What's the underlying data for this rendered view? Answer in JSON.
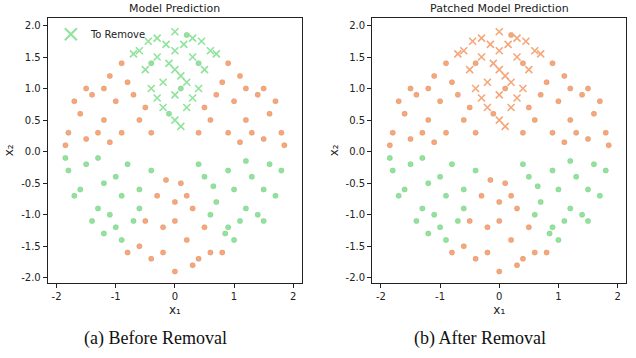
{
  "chart_data": [
    {
      "type": "scatter",
      "title": "Model Prediction",
      "x_label": "x₁",
      "y_label": "x₂",
      "caption": "(a) Before Removal",
      "xlim": [
        -2.15,
        2.15
      ],
      "ylim": [
        -2.08,
        2.12
      ],
      "xticks": [
        -2,
        -1,
        0,
        1,
        2
      ],
      "yticks": [
        {
          "value": -2,
          "label": "-2.0"
        },
        {
          "value": -1.5,
          "label": "-1.5"
        },
        {
          "value": -1,
          "label": "-1.0"
        },
        {
          "value": -0.5,
          "label": "-0.5"
        },
        {
          "value": 0,
          "label": "0.0"
        },
        {
          "value": 0.5,
          "label": "0.5"
        },
        {
          "value": 1,
          "label": "1.0"
        },
        {
          "value": 1.5,
          "label": "1.5"
        },
        {
          "value": 2,
          "label": "2.0"
        }
      ],
      "grid": false,
      "legend": "upper left",
      "series": [
        {
          "color": "#f6a679",
          "marker": "circle",
          "x": [
            1.8,
            1.6,
            1.4,
            1.1,
            0.9,
            1.5,
            1.2,
            1.0,
            0.7,
            0.6,
            0.9,
            1.3,
            1.7,
            1.2,
            0.5,
            0.4,
            1.85,
            1.5,
            0.8,
            1.1
          ],
          "y": [
            0.3,
            0.6,
            0.9,
            1.2,
            1.4,
            0.2,
            0.5,
            0.8,
            0.9,
            0.5,
            0.3,
            0.3,
            0.8,
            1.0,
            0.7,
            0.3,
            0.1,
            1.0,
            1.1,
            0.15
          ]
        },
        {
          "color": "#f6a679",
          "marker": "circle",
          "x": [
            -1.8,
            -1.6,
            -1.4,
            -1.1,
            -0.9,
            -1.5,
            -1.2,
            -1.0,
            -0.7,
            -0.6,
            -0.9,
            -1.3,
            -1.7,
            -1.2,
            -0.5,
            -0.4,
            -1.85,
            -1.5,
            -0.8,
            -1.1
          ],
          "y": [
            0.3,
            0.6,
            0.9,
            1.2,
            1.4,
            0.2,
            0.5,
            0.8,
            0.9,
            0.5,
            0.3,
            0.3,
            0.8,
            1.0,
            0.7,
            0.3,
            0.1,
            1.0,
            1.1,
            0.15
          ]
        },
        {
          "color": "#f6a679",
          "marker": "circle",
          "x": [
            0,
            -0.4,
            0.4,
            0.2,
            -0.2,
            0,
            0.3,
            -0.3,
            0.1,
            -0.6,
            0.6,
            0.5,
            -0.5,
            0,
            0.2,
            -0.15,
            0.8,
            -0.8,
            0.3,
            -0.2
          ],
          "y": [
            -1.9,
            -1.7,
            -1.7,
            -1.4,
            -1.2,
            -0.8,
            -0.9,
            -0.7,
            -0.5,
            -1.5,
            -1.6,
            -1.2,
            -1.1,
            -1.1,
            -0.7,
            -0.45,
            -1.6,
            -1.6,
            -1.8,
            -1.6
          ]
        },
        {
          "color": "#8fe39b",
          "marker": "circle",
          "x": [
            1.8,
            1.5,
            1.2,
            0.85,
            1.6,
            1.3,
            1.0,
            0.7,
            0.5,
            0.4,
            1.1,
            1.4,
            1.7,
            0.9,
            0.6,
            1.2,
            1.0,
            0.65,
            1.5,
            0.9
          ],
          "y": [
            -0.3,
            -0.6,
            -0.9,
            -1.3,
            -0.2,
            -0.4,
            -0.6,
            -0.8,
            -0.4,
            -0.2,
            -1.1,
            -1.0,
            -0.7,
            -0.3,
            -1.0,
            -0.15,
            -1.4,
            -0.55,
            -1.1,
            -1.2
          ]
        },
        {
          "color": "#8fe39b",
          "marker": "circle",
          "x": [
            -1.8,
            -1.6,
            -1.3,
            -1.0,
            -0.9,
            -1.5,
            -1.2,
            -0.9,
            -0.6,
            -0.4,
            -0.8,
            -1.1,
            -1.4,
            -1.7,
            -1.0,
            -0.6,
            -1.3,
            -0.7,
            -1.85,
            -1.2
          ],
          "y": [
            -0.3,
            -0.6,
            -0.9,
            -1.2,
            -1.4,
            -0.2,
            -0.5,
            -0.7,
            -0.6,
            -0.3,
            -0.2,
            -1.0,
            -1.1,
            -0.7,
            -0.4,
            -0.9,
            -0.1,
            -1.1,
            -0.1,
            -1.3
          ]
        },
        {
          "color": "#8fe39b",
          "marker": "circle",
          "x": [
            -0.4,
            0.4,
            0.1,
            -0.1,
            0.2
          ],
          "y": [
            1.4,
            1.4,
            1.0,
            0.6,
            1.85
          ]
        },
        {
          "name": "To Remove",
          "color": "#8fe39b",
          "marker": "x",
          "x": [
            0,
            -0.3,
            0.3,
            -0.6,
            0.6,
            0,
            -0.3,
            0.3,
            -0.5,
            0.5,
            0,
            -0.2,
            0.2,
            -0.4,
            0.4,
            0,
            -0.2,
            0.2,
            0,
            -0.15,
            0.15,
            -0.45,
            0.45,
            -0.7,
            0.7,
            -0.1,
            0.1,
            -0.3,
            0.3,
            0.1
          ],
          "y": [
            1.9,
            1.8,
            1.8,
            1.6,
            1.6,
            1.6,
            1.5,
            1.5,
            1.3,
            1.3,
            1.3,
            1.1,
            1.1,
            1.0,
            1.0,
            0.9,
            0.7,
            0.7,
            0.5,
            1.7,
            1.7,
            1.75,
            1.75,
            1.55,
            1.55,
            1.4,
            1.2,
            0.85,
            0.85,
            0.4
          ]
        }
      ]
    },
    {
      "type": "scatter",
      "title": "Patched Model Prediction",
      "x_label": "x₁",
      "y_label": "x₂",
      "caption": "(b) After Removal",
      "xlim": [
        -2.15,
        2.15
      ],
      "ylim": [
        -2.08,
        2.12
      ],
      "xticks": [
        -2,
        -1,
        0,
        1,
        2
      ],
      "yticks": [
        {
          "value": -2,
          "label": "-2.0"
        },
        {
          "value": -1.5,
          "label": "-1.5"
        },
        {
          "value": -1,
          "label": "-1.0"
        },
        {
          "value": -0.5,
          "label": "-0.5"
        },
        {
          "value": 0,
          "label": "0.0"
        },
        {
          "value": 0.5,
          "label": "0.5"
        },
        {
          "value": 1,
          "label": "1.0"
        },
        {
          "value": 1.5,
          "label": "1.5"
        },
        {
          "value": 2,
          "label": "2.0"
        }
      ],
      "grid": false,
      "series": [
        {
          "color": "#f6a679",
          "marker": "circle",
          "x": [
            1.8,
            1.6,
            1.4,
            1.1,
            0.9,
            1.5,
            1.2,
            1.0,
            0.7,
            0.6,
            0.9,
            1.3,
            1.7,
            1.2,
            0.5,
            0.4,
            1.85,
            1.5,
            0.8,
            1.1
          ],
          "y": [
            0.3,
            0.6,
            0.9,
            1.2,
            1.4,
            0.2,
            0.5,
            0.8,
            0.9,
            0.5,
            0.3,
            0.3,
            0.8,
            1.0,
            0.7,
            0.3,
            0.1,
            1.0,
            1.1,
            0.15
          ]
        },
        {
          "color": "#f6a679",
          "marker": "circle",
          "x": [
            -1.8,
            -1.6,
            -1.4,
            -1.1,
            -0.9,
            -1.5,
            -1.2,
            -1.0,
            -0.7,
            -0.6,
            -0.9,
            -1.3,
            -1.7,
            -1.2,
            -0.5,
            -0.4,
            -1.85,
            -1.5,
            -0.8,
            -1.1
          ],
          "y": [
            0.3,
            0.6,
            0.9,
            1.2,
            1.4,
            0.2,
            0.5,
            0.8,
            0.9,
            0.5,
            0.3,
            0.3,
            0.8,
            1.0,
            0.7,
            0.3,
            0.1,
            1.0,
            1.1,
            0.15
          ]
        },
        {
          "color": "#f6a679",
          "marker": "circle",
          "x": [
            0,
            -0.4,
            0.4,
            0.2,
            -0.2,
            0,
            0.3,
            -0.3,
            0.1,
            -0.6,
            0.6,
            0.5,
            -0.5,
            0,
            0.2,
            -0.15,
            0.8,
            -0.8,
            0.3,
            -0.2
          ],
          "y": [
            -1.9,
            -1.7,
            -1.7,
            -1.4,
            -1.2,
            -0.8,
            -0.9,
            -0.7,
            -0.5,
            -1.5,
            -1.6,
            -1.2,
            -1.1,
            -1.1,
            -0.7,
            -0.45,
            -1.6,
            -1.6,
            -1.8,
            -1.6
          ]
        },
        {
          "color": "#f6a679",
          "marker": "circle",
          "x": [
            -0.4,
            0.4,
            0.1,
            -0.1,
            0.2
          ],
          "y": [
            1.4,
            1.4,
            1.0,
            0.6,
            1.85
          ]
        },
        {
          "color": "#8fe39b",
          "marker": "circle",
          "x": [
            1.8,
            1.5,
            1.2,
            0.85,
            1.6,
            1.3,
            1.0,
            0.7,
            0.5,
            0.4,
            1.1,
            1.4,
            1.7,
            0.9,
            0.6,
            1.2,
            1.0,
            0.65,
            1.5,
            0.9
          ],
          "y": [
            -0.3,
            -0.6,
            -0.9,
            -1.3,
            -0.2,
            -0.4,
            -0.6,
            -0.8,
            -0.4,
            -0.2,
            -1.1,
            -1.0,
            -0.7,
            -0.3,
            -1.0,
            -0.15,
            -1.4,
            -0.55,
            -1.1,
            -1.2
          ]
        },
        {
          "color": "#8fe39b",
          "marker": "circle",
          "x": [
            -1.8,
            -1.6,
            -1.3,
            -1.0,
            -0.9,
            -1.5,
            -1.2,
            -0.9,
            -0.6,
            -0.4,
            -0.8,
            -1.1,
            -1.4,
            -1.7,
            -1.0,
            -0.6,
            -1.3,
            -0.7,
            -1.85,
            -1.2
          ],
          "y": [
            -0.3,
            -0.6,
            -0.9,
            -1.2,
            -1.4,
            -0.2,
            -0.5,
            -0.7,
            -0.6,
            -0.3,
            -0.2,
            -1.0,
            -1.1,
            -0.7,
            -0.4,
            -0.9,
            -0.1,
            -1.1,
            -0.1,
            -1.3
          ]
        },
        {
          "color": "#f6a679",
          "marker": "x",
          "x": [
            0,
            -0.3,
            0.3,
            -0.6,
            0.6,
            0,
            -0.3,
            0.3,
            -0.5,
            0.5,
            0,
            -0.2,
            0.2,
            -0.4,
            0.4,
            0,
            -0.2,
            0.2,
            0,
            -0.15,
            0.15,
            -0.45,
            0.45,
            -0.7,
            0.7,
            -0.1,
            0.1,
            -0.3,
            0.3,
            0.1
          ],
          "y": [
            1.9,
            1.8,
            1.8,
            1.6,
            1.6,
            1.6,
            1.5,
            1.5,
            1.3,
            1.3,
            1.3,
            1.1,
            1.1,
            1.0,
            1.0,
            0.9,
            0.7,
            0.7,
            0.5,
            1.7,
            1.7,
            1.75,
            1.75,
            1.55,
            1.55,
            1.4,
            1.2,
            0.85,
            0.85,
            0.4
          ]
        }
      ]
    }
  ]
}
